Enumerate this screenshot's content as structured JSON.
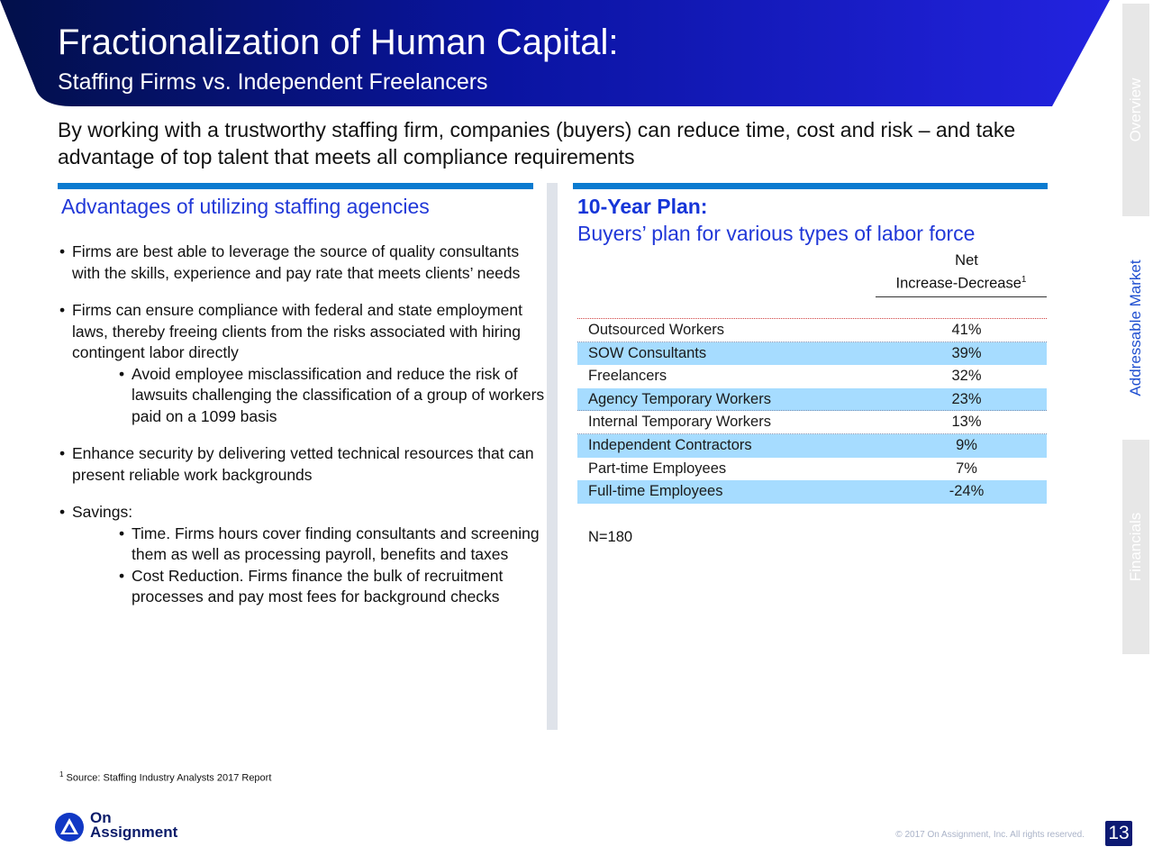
{
  "header": {
    "title": "Fractionalization of Human Capital:",
    "subtitle": "Staffing Firms vs. Independent Freelancers"
  },
  "intro": "By working with a trustworthy staffing firm, companies (buyers) can reduce time, cost and risk – and take advantage of top talent that meets all compliance requirements",
  "side_tabs": [
    "Overview",
    "Addressable Market",
    "Financials"
  ],
  "left": {
    "heading": "Advantages of utilizing staffing agencies",
    "bullets": [
      {
        "text": "Firms are best able to leverage the source of quality consultants with the skills, experience and pay rate that meets clients’ needs",
        "subs": []
      },
      {
        "text": "Firms can ensure compliance with federal and state employment laws, thereby freeing clients from the risks associated with hiring contingent labor directly",
        "subs": [
          "Avoid employee misclassification and reduce the risk of lawsuits challenging the classification of a group of workers paid on a 1099 basis"
        ]
      },
      {
        "text": "Enhance security by delivering vetted technical resources that can present reliable work backgrounds",
        "subs": []
      },
      {
        "text": "Savings:",
        "subs": [
          "Time. Firms hours cover finding consultants and screening them as well as processing payroll, benefits and taxes",
          "Cost Reduction. Firms finance the bulk of recruitment processes and pay most fees for background checks"
        ]
      }
    ]
  },
  "right": {
    "title": "10-Year Plan:",
    "subtitle": "Buyers’ plan for various types of labor force",
    "col_head_line1": "Net",
    "col_head_line2": "Increase-Decrease",
    "col_head_sup": "1",
    "rows": [
      {
        "label": "Outsourced Workers",
        "value": "41%"
      },
      {
        "label": "SOW Consultants",
        "value": "39%"
      },
      {
        "label": "Freelancers",
        "value": "32%"
      },
      {
        "label": "Agency Temporary Workers",
        "value": "23%"
      },
      {
        "label": "Internal Temporary Workers",
        "value": "13%"
      },
      {
        "label": "Independent Contractors",
        "value": "9%"
      },
      {
        "label": "Part-time Employees",
        "value": "7%"
      },
      {
        "label": "Full-time Employees",
        "value": "-24%"
      }
    ],
    "n_value": "N=180"
  },
  "footer": {
    "footnote_sup": "1",
    "footnote": "Source: Staffing Industry Analysts 2017 Report",
    "logo_line1": "On",
    "logo_line2": "Assignment",
    "copyright": "© 2017 On Assignment, Inc. All rights reserved.",
    "page_number": "13"
  },
  "colors": {
    "banner_dark": "#03124f",
    "banner_bright": "#1f1fd8",
    "accent_blue": "#2138d8",
    "row_shade": "#a6dcff",
    "top_bar": "#0b7bd0"
  }
}
